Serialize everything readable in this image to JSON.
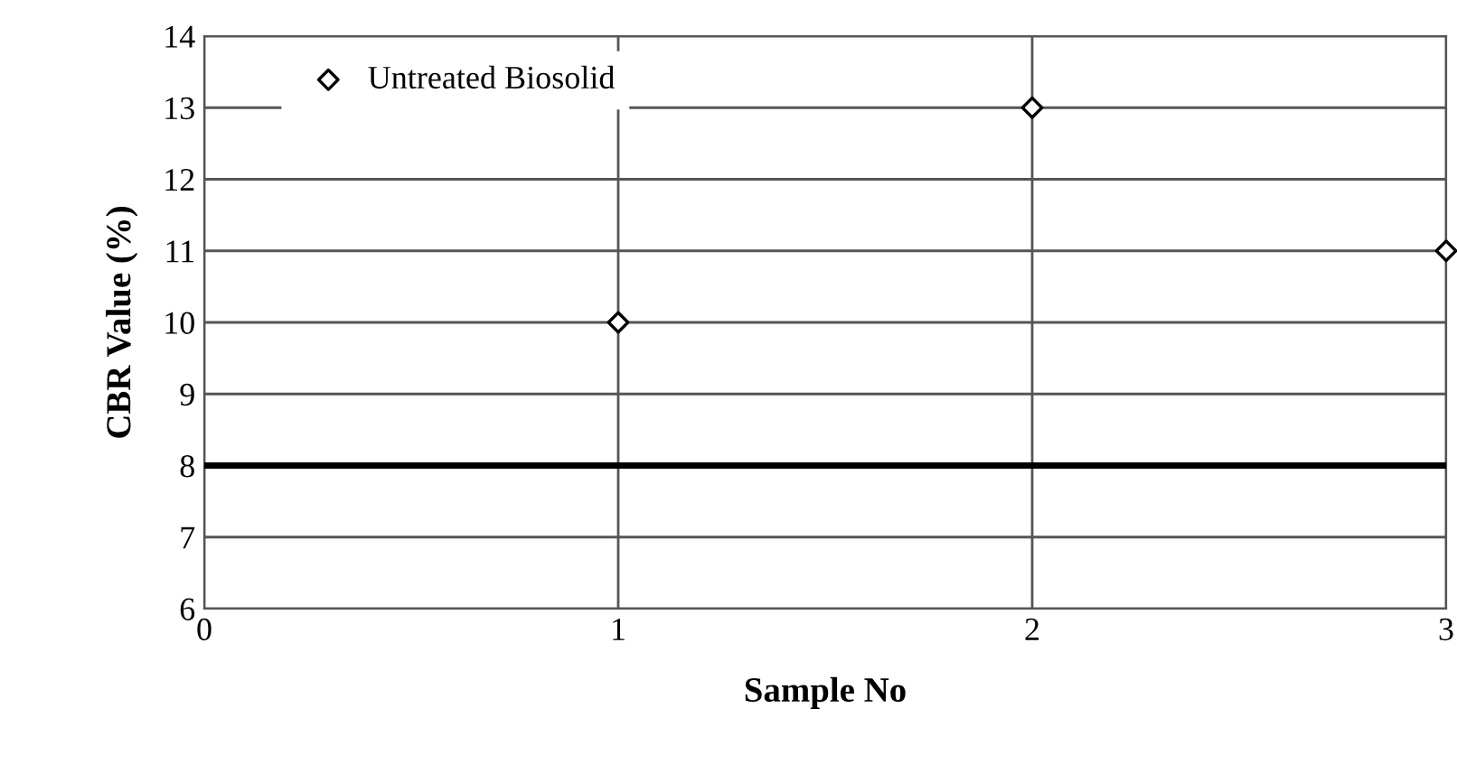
{
  "chart_data": {
    "type": "scatter",
    "xlabel": "Sample No",
    "ylabel": "CBR Value (%)",
    "x": [
      1,
      2,
      3
    ],
    "series": [
      {
        "name": "Untreated Biosolid",
        "color": "#000000",
        "values": [
          10,
          13,
          11
        ]
      }
    ],
    "xlim": [
      0,
      3
    ],
    "ylim": [
      6,
      14
    ],
    "xticks": [
      0,
      1,
      2,
      3
    ],
    "yticks": [
      6,
      7,
      8,
      9,
      10,
      11,
      12,
      13,
      14
    ],
    "grid": true,
    "legend": "top left",
    "marker": "diamond",
    "ref_lines": [
      {
        "axis": "y",
        "value": 8,
        "color": "#000000",
        "line_style": "solid"
      }
    ]
  }
}
